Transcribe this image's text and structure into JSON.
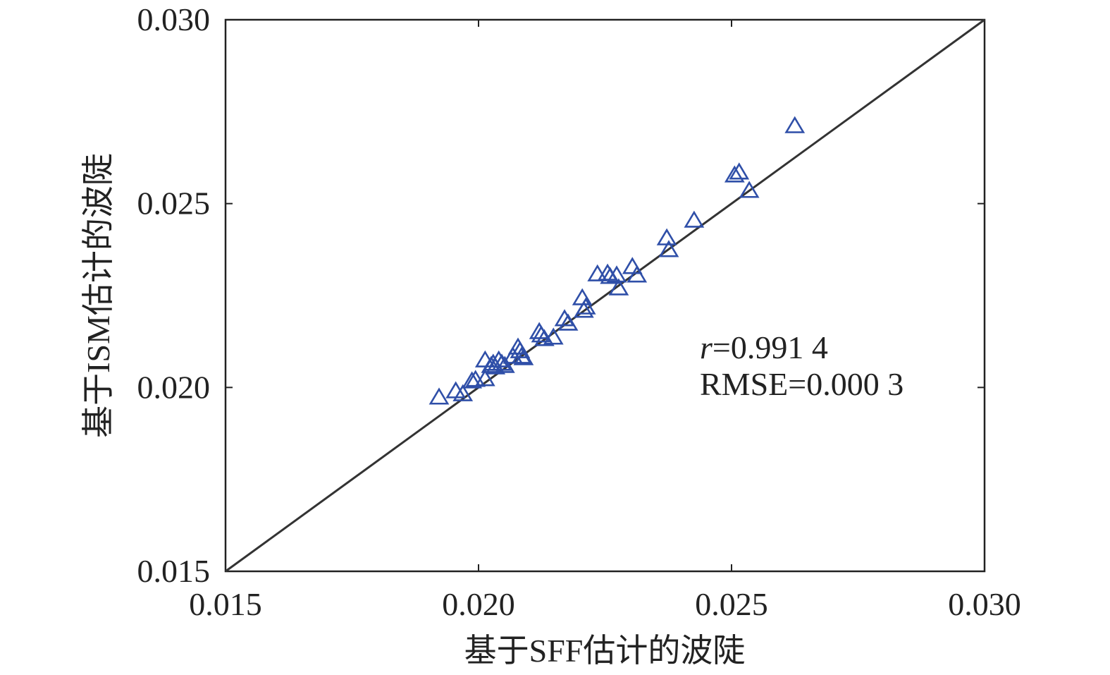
{
  "chart_data": {
    "type": "scatter",
    "title": "",
    "xlabel": "基于SFF估计的波陡",
    "ylabel": "基于ISM估计的波陡",
    "xlim": [
      0.015,
      0.03
    ],
    "ylim": [
      0.015,
      0.03
    ],
    "xticks": [
      "0.015",
      "0.020",
      "0.025",
      "0.030"
    ],
    "yticks": [
      "0.015",
      "0.020",
      "0.025",
      "0.030"
    ],
    "grid": false,
    "marker": "triangle-open",
    "marker_color": "#2f4fa8",
    "reference_line": {
      "type": "y=x",
      "color": "#333333"
    },
    "annotation": {
      "r_label": "r",
      "r_value": "=0.991 4",
      "rmse": "RMSE=0.000 3"
    },
    "points": [
      [
        0.01922,
        0.01974
      ],
      [
        0.01955,
        0.01991
      ],
      [
        0.01969,
        0.01983
      ],
      [
        0.01987,
        0.02018
      ],
      [
        0.01994,
        0.02022
      ],
      [
        0.02013,
        0.02024
      ],
      [
        0.02013,
        0.02075
      ],
      [
        0.02025,
        0.0206
      ],
      [
        0.02029,
        0.02066
      ],
      [
        0.02033,
        0.02056
      ],
      [
        0.0204,
        0.02075
      ],
      [
        0.02046,
        0.02066
      ],
      [
        0.02052,
        0.0206
      ],
      [
        0.02068,
        0.02085
      ],
      [
        0.02078,
        0.0211
      ],
      [
        0.02082,
        0.021
      ],
      [
        0.02085,
        0.02085
      ],
      [
        0.02089,
        0.02081
      ],
      [
        0.0212,
        0.02152
      ],
      [
        0.02124,
        0.02143
      ],
      [
        0.0213,
        0.02133
      ],
      [
        0.02148,
        0.02137
      ],
      [
        0.0217,
        0.02187
      ],
      [
        0.02177,
        0.02175
      ],
      [
        0.02205,
        0.02244
      ],
      [
        0.02208,
        0.0221
      ],
      [
        0.02212,
        0.02219
      ],
      [
        0.02235,
        0.02309
      ],
      [
        0.02255,
        0.02311
      ],
      [
        0.0226,
        0.02302
      ],
      [
        0.02273,
        0.02306
      ],
      [
        0.02277,
        0.02271
      ],
      [
        0.02304,
        0.02329
      ],
      [
        0.02313,
        0.02306
      ],
      [
        0.02372,
        0.02407
      ],
      [
        0.02376,
        0.02375
      ],
      [
        0.02426,
        0.02455
      ],
      [
        0.02506,
        0.02578
      ],
      [
        0.02515,
        0.02586
      ],
      [
        0.02535,
        0.02536
      ],
      [
        0.02625,
        0.02712
      ]
    ]
  }
}
